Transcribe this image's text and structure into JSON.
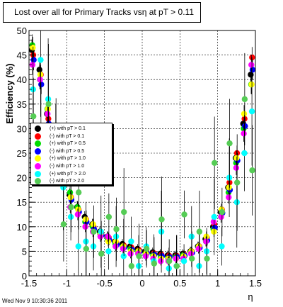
{
  "chart_data": {
    "type": "scatter",
    "title": "Lost over all for Primary Tracks vsη at pT > 0.11",
    "xlabel": "η",
    "ylabel": "Efficiency (%)",
    "xlim": [
      -1.5,
      1.5
    ],
    "ylim": [
      0,
      50
    ],
    "x_ticks": [
      "-1.5",
      "-1",
      "-0.5",
      "0",
      "0.5",
      "1",
      "1.5"
    ],
    "y_ticks": [
      "0",
      "5",
      "10",
      "15",
      "20",
      "25",
      "30",
      "35",
      "40",
      "45",
      "50"
    ],
    "grid": true,
    "legend_position": "middle-left",
    "series": [
      {
        "name": "(+) with pT > 0.1",
        "color": "#000000",
        "x": [
          -1.45,
          -1.35,
          -1.25,
          -1.15,
          -1.05,
          -0.95,
          -0.85,
          -0.75,
          -0.65,
          -0.55,
          -0.45,
          -0.35,
          -0.25,
          -0.15,
          -0.05,
          0.05,
          0.15,
          0.25,
          0.35,
          0.45,
          0.55,
          0.65,
          0.75,
          0.85,
          0.95,
          1.05,
          1.15,
          1.25,
          1.35,
          1.45
        ],
        "y": [
          46,
          42,
          33,
          26,
          20,
          16.5,
          14,
          12,
          10.5,
          9,
          8,
          7,
          6.5,
          6,
          5.5,
          5,
          4.8,
          4.5,
          4.2,
          4.2,
          4.5,
          5,
          6,
          7.5,
          10,
          13,
          18,
          24,
          31,
          41
        ]
      },
      {
        "name": "(-) with pT > 0.1",
        "color": "#ff0000",
        "x": [
          -1.45,
          -1.35,
          -1.25,
          -1.15,
          -1.05,
          -0.95,
          -0.85,
          -0.75,
          -0.65,
          -0.55,
          -0.45,
          -0.35,
          -0.25,
          -0.15,
          -0.05,
          0.05,
          0.15,
          0.25,
          0.35,
          0.45,
          0.55,
          0.65,
          0.75,
          0.85,
          0.95,
          1.05,
          1.15,
          1.25,
          1.35,
          1.45
        ],
        "y": [
          45,
          41,
          32,
          25,
          19.5,
          16,
          13.5,
          11.5,
          10,
          8.8,
          7.8,
          6.8,
          6.2,
          5.8,
          5.3,
          5,
          4.6,
          4.3,
          4.1,
          4.1,
          4.4,
          5,
          6,
          7.8,
          10.5,
          13.5,
          19,
          25,
          32,
          44.5
        ]
      },
      {
        "name": "(+) with pT > 0.5",
        "color": "#00dd00",
        "x": [
          -1.45,
          -1.35,
          -1.25,
          -1.15,
          -1.05,
          -0.95,
          -0.85,
          -0.75,
          -0.65,
          -0.55,
          -0.45,
          -0.35,
          -0.25,
          -0.15,
          -0.05,
          0.05,
          0.15,
          0.25,
          0.35,
          0.45,
          0.55,
          0.65,
          0.75,
          0.85,
          0.95,
          1.05,
          1.15,
          1.25,
          1.35,
          1.45
        ],
        "y": [
          47,
          40,
          34,
          25,
          20,
          17,
          14,
          11,
          10,
          8.5,
          7.5,
          6.5,
          6,
          5.5,
          5,
          4.5,
          4.2,
          3.8,
          3.6,
          3.8,
          4.2,
          4.8,
          5.8,
          7,
          9.5,
          12,
          17,
          23,
          30,
          39
        ]
      },
      {
        "name": "(-) with pT > 0.5",
        "color": "#0000ff",
        "x": [
          -1.45,
          -1.35,
          -1.25,
          -1.15,
          -1.05,
          -0.95,
          -0.85,
          -0.75,
          -0.65,
          -0.55,
          -0.45,
          -0.35,
          -0.25,
          -0.15,
          -0.05,
          0.05,
          0.15,
          0.25,
          0.35,
          0.45,
          0.55,
          0.65,
          0.75,
          0.85,
          0.95,
          1.05,
          1.15,
          1.25,
          1.35,
          1.45
        ],
        "y": [
          44,
          39,
          31,
          24,
          19,
          15.5,
          13,
          11,
          9.5,
          8.3,
          7.3,
          6.3,
          5.8,
          5.3,
          4.9,
          4.6,
          4.3,
          4,
          3.8,
          3.8,
          4.1,
          4.7,
          5.7,
          7.2,
          9.8,
          12.8,
          17.5,
          23.5,
          30.5,
          42
        ]
      },
      {
        "name": "(+) with pT > 1.0",
        "color": "#ffff00",
        "x": [
          -1.45,
          -1.35,
          -1.25,
          -1.15,
          -1.05,
          -0.95,
          -0.85,
          -0.75,
          -0.65,
          -0.55,
          -0.45,
          -0.35,
          -0.25,
          -0.15,
          -0.05,
          0.05,
          0.15,
          0.25,
          0.35,
          0.45,
          0.55,
          0.65,
          0.75,
          0.85,
          0.95,
          1.05,
          1.15,
          1.25,
          1.35,
          1.45
        ],
        "y": [
          46.5,
          41,
          34,
          26,
          21,
          16,
          13.5,
          11.5,
          10.5,
          8.5,
          7,
          7,
          6,
          5,
          5,
          4.5,
          4,
          3.5,
          3.5,
          3.5,
          4,
          5,
          6,
          8,
          9,
          13.5,
          18,
          24,
          33,
          39
        ]
      },
      {
        "name": "(-) with pT > 1.0",
        "color": "#ff00ff",
        "x": [
          -1.45,
          -1.35,
          -1.25,
          -1.15,
          -1.05,
          -0.95,
          -0.85,
          -0.75,
          -0.65,
          -0.55,
          -0.45,
          -0.35,
          -0.25,
          -0.15,
          -0.05,
          0.05,
          0.15,
          0.25,
          0.35,
          0.45,
          0.55,
          0.65,
          0.75,
          0.85,
          0.95,
          1.05,
          1.15,
          1.25,
          1.35,
          1.45
        ],
        "y": [
          43,
          40,
          33,
          24,
          19,
          14,
          12.5,
          10,
          9,
          8,
          8,
          6,
          5.5,
          4.5,
          4.5,
          4,
          3.5,
          3,
          3,
          3.5,
          3.5,
          4.5,
          5.5,
          7,
          11,
          12,
          16,
          22,
          29,
          43
        ]
      },
      {
        "name": "(+) with pT > 2.0",
        "color": "#00ffff",
        "x": [
          -1.45,
          -1.35,
          -1.25,
          -1.15,
          -1.05,
          -0.95,
          -0.85,
          -0.75,
          -0.65,
          -0.55,
          -0.45,
          -0.35,
          -0.25,
          -0.15,
          -0.05,
          0.05,
          0.15,
          0.25,
          0.35,
          0.45,
          0.55,
          0.65,
          0.75,
          0.85,
          0.95,
          1.05,
          1.15,
          1.25,
          1.35,
          1.45
        ],
        "y": [
          38,
          44,
          36,
          27,
          18,
          12,
          6,
          7,
          6,
          9,
          5,
          8,
          4,
          7,
          2,
          6,
          3,
          9,
          1.5,
          2,
          3,
          8,
          2,
          5,
          12,
          6,
          20,
          15,
          25,
          33.5
        ]
      },
      {
        "name": "(-) with pT > 2.0",
        "color": "#55cc55",
        "x": [
          -1.45,
          -1.35,
          -1.25,
          -1.15,
          -1.05,
          -0.95,
          -0.85,
          -0.75,
          -0.65,
          -0.55,
          -0.45,
          -0.35,
          -0.25,
          -0.15,
          -0.05,
          0.05,
          0.15,
          0.25,
          0.35,
          0.45,
          0.55,
          0.65,
          0.75,
          0.85,
          0.95,
          1.05,
          1.15,
          1.25,
          1.35,
          1.45
        ],
        "y": [
          32.5,
          30,
          35,
          28,
          10.5,
          14,
          17,
          5.5,
          9,
          4.5,
          12,
          9.5,
          13,
          2,
          4,
          5.5,
          2.5,
          11.5,
          3,
          2,
          12.5,
          3.5,
          9,
          3.5,
          23,
          13,
          27,
          19,
          36,
          21.5
        ]
      }
    ]
  },
  "footer_text": "Wed Nov  9 10:30:36 2011"
}
